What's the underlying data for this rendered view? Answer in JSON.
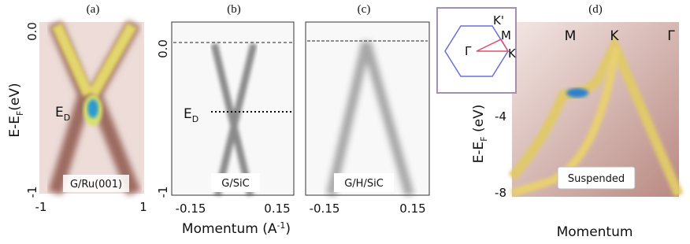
{
  "panels": [
    {
      "label": "(a)",
      "yticks": [
        "0.0",
        "-1"
      ],
      "xticks": [
        "-1",
        "1"
      ],
      "dirac": {
        "main": "E",
        "sub": "D"
      },
      "sample": "G/Ru(001)"
    },
    {
      "label": "(b)",
      "yticks": [
        "0.0",
        "-1"
      ],
      "xticks": [
        "-0.15",
        "0.15"
      ],
      "dirac": {
        "main": "E",
        "sub": "D"
      },
      "sample": "G/SiC"
    },
    {
      "label": "(c)",
      "xticks": [
        "-0.15",
        "0.15"
      ],
      "sample": "G/H/SiC"
    },
    {
      "label": "(d)",
      "yticks": [
        "-4",
        "-8"
      ],
      "points": [
        "M",
        "K",
        "Γ"
      ],
      "sample": "Suspended",
      "xlabel": "Momentum",
      "ylabel": {
        "main": "E-E",
        "sub": "F",
        "unit": " (eV)"
      },
      "inset": {
        "points": [
          "K'",
          "M",
          "Γ",
          "K"
        ]
      }
    }
  ],
  "ylabel": {
    "main": "E-E",
    "sub": "F",
    "unit": "(eV)"
  },
  "xlabel": {
    "main": "Momentum (A",
    "sup": "-1",
    "end": ")"
  }
}
